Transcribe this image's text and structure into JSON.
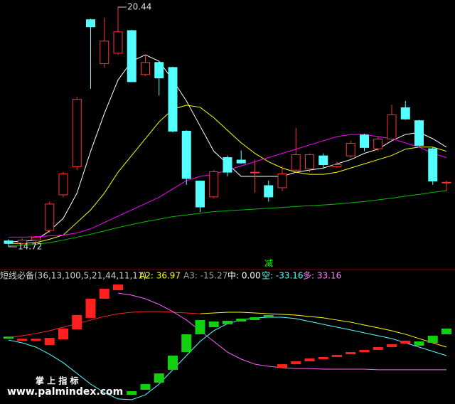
{
  "chart_data": [
    {
      "type": "candlestick",
      "ylim": [
        14.55,
        20.61
      ],
      "up_color": "#ff3232",
      "down_color": "#54ffff",
      "open": [
        14.86,
        14.8,
        14.88,
        15.11,
        15.96,
        16.63,
        20.14,
        19.09,
        19.34,
        19.88,
        18.83,
        19.12,
        19.0,
        17.48,
        16.29,
        15.91,
        16.85,
        16.79,
        16.5,
        16.18,
        16.13,
        16.55,
        16.58,
        16.89,
        16.63,
        16.89,
        17.39,
        17.06,
        17.29,
        18.04,
        17.73,
        17.06,
        16.26
      ],
      "high": [
        14.9,
        14.92,
        14.98,
        15.8,
        16.5,
        18.3,
        20.16,
        20.19,
        20.44,
        19.9,
        19.3,
        19.14,
        19.02,
        17.5,
        16.3,
        16.55,
        16.9,
        17.02,
        16.8,
        16.3,
        16.65,
        17.56,
        16.95,
        16.95,
        16.75,
        17.25,
        17.42,
        17.35,
        18.11,
        18.2,
        17.75,
        17.1,
        16.3
      ],
      "low": [
        14.72,
        14.76,
        14.82,
        15.05,
        15.9,
        16.55,
        18.49,
        19.0,
        19.3,
        18.66,
        18.8,
        18.33,
        17.45,
        16.2,
        15.55,
        15.88,
        16.4,
        16.7,
        16.01,
        15.8,
        16.05,
        16.5,
        16.5,
        16.6,
        16.6,
        16.85,
        17.0,
        17.0,
        17.25,
        17.75,
        17.1,
        16.2,
        16.04
      ],
      "close": [
        14.8,
        14.88,
        14.94,
        15.74,
        16.46,
        18.24,
        19.97,
        19.63,
        19.85,
        18.66,
        19.12,
        18.75,
        17.48,
        16.35,
        15.67,
        16.51,
        16.5,
        16.72,
        16.5,
        15.91,
        16.46,
        16.92,
        16.92,
        16.68,
        16.68,
        17.19,
        17.09,
        17.29,
        17.87,
        17.77,
        17.14,
        16.29,
        16.26
      ],
      "lines": [
        {
          "color": "#ffffff",
          "values": [
            14.84,
            14.85,
            14.88,
            15.1,
            15.4,
            16.0,
            17.0,
            17.9,
            18.7,
            19.15,
            19.3,
            19.15,
            18.7,
            18.2,
            17.6,
            17.0,
            16.7,
            16.4,
            16.4,
            16.4,
            16.4,
            16.5,
            16.55,
            16.6,
            16.7,
            16.8,
            16.95,
            17.05,
            17.25,
            17.4,
            17.45,
            17.3,
            17.1
          ]
        },
        {
          "color": "#ffff00",
          "values": [
            14.8,
            14.8,
            14.82,
            14.9,
            15.0,
            15.3,
            15.6,
            16.0,
            16.5,
            16.9,
            17.3,
            17.7,
            18.0,
            18.1,
            18.05,
            17.8,
            17.5,
            17.2,
            16.95,
            16.75,
            16.6,
            16.5,
            16.45,
            16.45,
            16.5,
            16.6,
            16.7,
            16.8,
            16.9,
            17.05,
            17.1,
            17.1,
            17.0
          ]
        },
        {
          "color": "#ff00ff",
          "values": [
            14.95,
            14.95,
            14.96,
            14.98,
            15.0,
            15.05,
            15.15,
            15.3,
            15.45,
            15.6,
            15.75,
            15.9,
            16.1,
            16.3,
            16.4,
            16.45,
            16.55,
            16.65,
            16.75,
            16.85,
            16.95,
            17.05,
            17.15,
            17.25,
            17.35,
            17.4,
            17.4,
            17.35,
            17.3,
            17.2,
            17.1,
            16.95,
            16.85
          ]
        },
        {
          "color": "#00c000",
          "values": [
            14.74,
            14.76,
            14.78,
            14.82,
            14.88,
            14.95,
            15.02,
            15.1,
            15.18,
            15.25,
            15.32,
            15.38,
            15.44,
            15.48,
            15.52,
            15.56,
            15.58,
            15.6,
            15.62,
            15.64,
            15.66,
            15.68,
            15.7,
            15.72,
            15.74,
            15.77,
            15.8,
            15.84,
            15.88,
            15.93,
            15.97,
            16.02,
            16.06
          ]
        }
      ],
      "max_label": 20.44,
      "min_label": 14.72,
      "annotation": {
        "text": "减",
        "color": "#00ff00"
      }
    },
    {
      "type": "indicator",
      "ylim": [
        -62,
        63
      ],
      "title": "短线必备(36,13,100,5,21,44,11,11)",
      "legend": [
        {
          "text": "A2: 36.97",
          "color": "#ffff00"
        },
        {
          "text": "A3: -15.27",
          "color": "#a0a0a0"
        },
        {
          "text": "中: 0.00",
          "color": "#ffffff"
        },
        {
          "text": "空: -33.16",
          "color": "#54ffff"
        },
        {
          "text": "多: 33.16",
          "color": "#ff80ff"
        }
      ],
      "boxes": [
        {
          "color": "#ff2020",
          "low": [
            null,
            -3,
            -3,
            -6.8,
            -1.5,
            7.8,
            18.5,
            36.4,
            44.4,
            null,
            null,
            null,
            null,
            null,
            null,
            null,
            null,
            null,
            null,
            null,
            -28.1,
            -24.8,
            -22.1,
            -20.1,
            -18.1,
            -15.5,
            -13.5,
            -11.5,
            -8.8,
            -5.5,
            null,
            null,
            null
          ],
          "high": [
            null,
            -1,
            -1,
            -0.2,
            8.5,
            21.2,
            36.4,
            45.7,
            49.7,
            null,
            null,
            null,
            null,
            null,
            null,
            null,
            null,
            null,
            null,
            null,
            -24.8,
            -22.1,
            -19.4,
            -18.1,
            -16.1,
            -13.5,
            -11.5,
            -8.8,
            -6.1,
            -2.8,
            null,
            null,
            null
          ]
        },
        {
          "color": "#10d010",
          "low": [
            -1,
            null,
            null,
            null,
            null,
            null,
            null,
            null,
            null,
            -53.4,
            -48.7,
            -42,
            -30,
            -13.5,
            3.2,
            9.8,
            12.5,
            15.1,
            16.5,
            19.1,
            null,
            null,
            null,
            null,
            null,
            null,
            null,
            null,
            null,
            null,
            -7.5,
            -4.8,
            3.2
          ],
          "high": [
            1,
            null,
            null,
            null,
            null,
            null,
            null,
            null,
            null,
            -50,
            -43.4,
            -33.4,
            -16.8,
            3.2,
            16.5,
            15.1,
            15.8,
            17.8,
            19.1,
            21.1,
            null,
            null,
            null,
            null,
            null,
            null,
            null,
            null,
            null,
            null,
            -3.5,
            1.8,
            8.5
          ]
        }
      ],
      "lines": [
        {
          "color": "#ff2020",
          "values": [
            -0.2,
            1.8,
            3.8,
            6.5,
            9.8,
            13.1,
            16.5,
            19.8,
            22.4,
            23.8,
            24.4,
            24.4,
            23.8,
            23.1,
            22.4,
            null,
            null,
            null,
            null,
            null,
            null,
            null,
            null,
            null,
            null,
            null,
            null,
            null,
            null,
            null,
            null,
            null,
            null
          ]
        },
        {
          "color": "#ffff00",
          "values": [
            null,
            null,
            null,
            null,
            null,
            null,
            null,
            null,
            null,
            null,
            null,
            null,
            null,
            null,
            22.4,
            23.1,
            23.8,
            23.8,
            23.1,
            22.4,
            21.8,
            21.1,
            19.8,
            18.5,
            16.5,
            14.5,
            11.8,
            9.2,
            6.5,
            3.2,
            -0.8,
            -4.8,
            -8.8
          ]
        },
        {
          "color": "#ff60ff",
          "values": [
            null,
            null,
            null,
            null,
            null,
            null,
            null,
            null,
            41.7,
            39.7,
            36.4,
            31.1,
            24.4,
            16.5,
            6.5,
            -3.5,
            -13.5,
            -20.1,
            -24.8,
            -26.8,
            -28.1,
            -28.8,
            -28.8,
            -29.4,
            -29.4,
            -29.4,
            -29.4,
            -30,
            -30,
            -30,
            -30,
            -30,
            -30
          ]
        },
        {
          "color": "#54ffff",
          "values": [
            -2.2,
            -4.8,
            -8.8,
            -15.5,
            -23.4,
            -33.4,
            -43.4,
            -51.4,
            -57.3,
            -58,
            -53.4,
            -43.4,
            -30,
            -16.8,
            -3.5,
            6.5,
            13.1,
            16.5,
            18.5,
            19.1,
            19.1,
            17.8,
            15.1,
            12.5,
            9.8,
            7.2,
            4.5,
            1.8,
            -0.8,
            -4.8,
            -8.8,
            -12.8,
            -16.8
          ]
        }
      ]
    }
  ],
  "watermark": {
    "title": "掌 上 指 标",
    "url": "www.palmindex.com"
  }
}
